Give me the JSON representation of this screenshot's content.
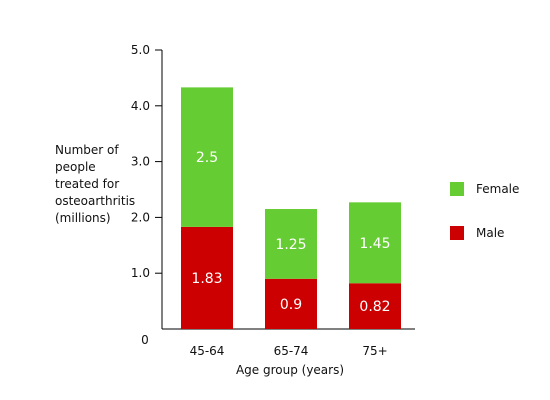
{
  "chart_data": {
    "type": "bar",
    "stacked": true,
    "categories": [
      "45-64",
      "65-74",
      "75+"
    ],
    "series": [
      {
        "name": "Male",
        "values": [
          1.83,
          0.9,
          0.82
        ],
        "labels": [
          "1.83",
          "0.9",
          "0.82"
        ],
        "color": "#cc0000"
      },
      {
        "name": "Female",
        "values": [
          2.5,
          1.25,
          1.45
        ],
        "labels": [
          "2.5",
          "1.25",
          "1.45"
        ],
        "color": "#66cc33"
      }
    ],
    "xlabel": "Age group (years)",
    "ylabel": "Number of people treated for osteoarthritis (millions)",
    "ylabel_lines": [
      "Number of",
      "people",
      "treated for",
      "osteoarthritis",
      "(millions)"
    ],
    "yticks": [
      "0",
      "1.0",
      "2.0",
      "3.0",
      "4.0",
      "5.0"
    ],
    "ylim": [
      0,
      5
    ],
    "legend": [
      "Female",
      "Male"
    ],
    "legend_position": "right",
    "grid": false
  }
}
